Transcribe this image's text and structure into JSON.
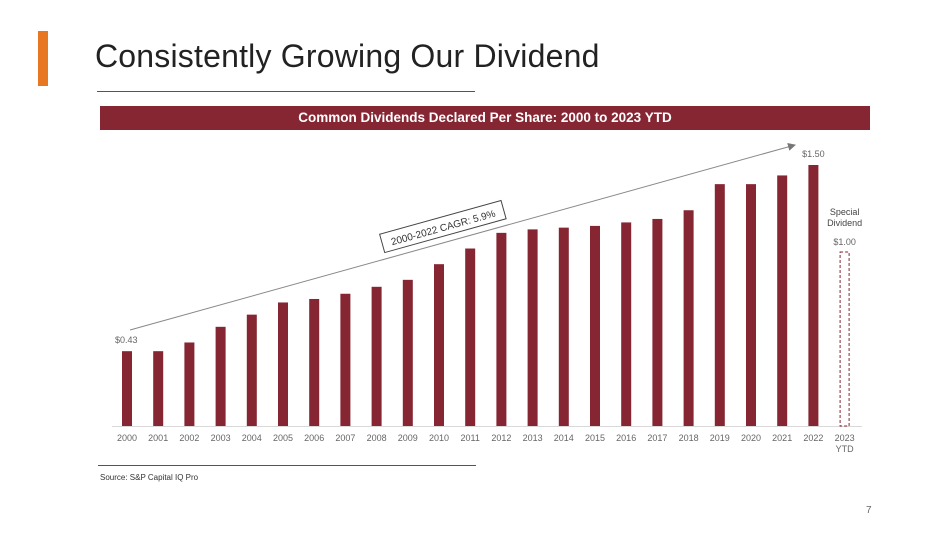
{
  "slide": {
    "title": "Consistently Growing Our Dividend",
    "source": "Source: S&P Capital IQ Pro",
    "page_number": "7",
    "colors": {
      "accent": "#e87722",
      "bar": "#862633"
    }
  },
  "chart_data": {
    "type": "bar",
    "title": "Common Dividends Declared Per Share: 2000 to 2023 YTD",
    "categories": [
      "2000",
      "2001",
      "2002",
      "2003",
      "2004",
      "2005",
      "2006",
      "2007",
      "2008",
      "2009",
      "2010",
      "2011",
      "2012",
      "2013",
      "2014",
      "2015",
      "2016",
      "2017",
      "2018",
      "2019",
      "2020",
      "2021",
      "2022",
      "2023"
    ],
    "category_sublabels": {
      "2023": "YTD"
    },
    "values": [
      0.43,
      0.43,
      0.48,
      0.57,
      0.64,
      0.71,
      0.73,
      0.76,
      0.8,
      0.84,
      0.93,
      1.02,
      1.11,
      1.13,
      1.14,
      1.15,
      1.17,
      1.19,
      1.24,
      1.39,
      1.39,
      1.44,
      1.5,
      0
    ],
    "special_dividend": {
      "category": "2023",
      "value": 1.0,
      "label": "Special Dividend",
      "value_label": "$1.00",
      "style": "dashed-outline"
    },
    "data_labels": [
      {
        "category": "2000",
        "text": "$0.43"
      },
      {
        "category": "2022",
        "text": "$1.50"
      }
    ],
    "annotation": {
      "text": "2000-2022 CAGR: 5.9%",
      "type": "trend-arrow",
      "from": "2000",
      "to": "2022"
    },
    "ylim": [
      0,
      1.5
    ],
    "xlabel": "",
    "ylabel": "",
    "grid": false,
    "legend": "none"
  }
}
